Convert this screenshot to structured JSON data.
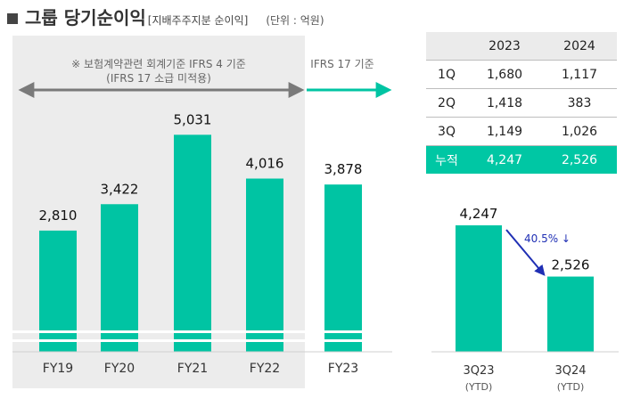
{
  "header": {
    "title": "그룹 당기순이익",
    "subtitle": "[지배주주지분 순이익]",
    "unit": "(단위 : 억원)"
  },
  "colors": {
    "bar": "#00c4a3",
    "arrow_gray": "#7a7a7a",
    "arrow_teal": "#00c4a3",
    "arrow_blue": "#1f2fb4",
    "panel_bg": "#ececec"
  },
  "annotations": {
    "ifrs4_line1": "※ 보험계약관련 회계기준 IFRS 4 기준",
    "ifrs4_line2": "(IFRS 17 소급 미적용)",
    "ifrs17": "IFRS 17 기준",
    "change": "40.5% ↓"
  },
  "chart_data": [
    {
      "type": "bar",
      "title": "그룹 당기순이익",
      "categories": [
        "FY19",
        "FY20",
        "FY21",
        "FY22",
        "FY23"
      ],
      "values": [
        2810,
        3422,
        5031,
        4016,
        3878
      ],
      "labels": [
        "2,810",
        "3,422",
        "5,031",
        "4,016",
        "3,878"
      ],
      "xlabel": "",
      "ylabel": "억원",
      "ylim": [
        0,
        5500
      ],
      "grid": false
    },
    {
      "type": "bar",
      "categories": [
        "3Q23",
        "3Q24"
      ],
      "sublabels": [
        "(YTD)",
        "(YTD)"
      ],
      "values": [
        4247,
        2526
      ],
      "labels": [
        "4,247",
        "2,526"
      ],
      "ylim": [
        0,
        5000
      ],
      "grid": false
    },
    {
      "type": "table",
      "columns": [
        "",
        "2023",
        "2024"
      ],
      "rows": [
        [
          "1Q",
          "1,680",
          "1,117"
        ],
        [
          "2Q",
          "1,418",
          "383"
        ],
        [
          "3Q",
          "1,149",
          "1,026"
        ]
      ],
      "total": [
        "누적",
        "4,247",
        "2,526"
      ]
    }
  ]
}
